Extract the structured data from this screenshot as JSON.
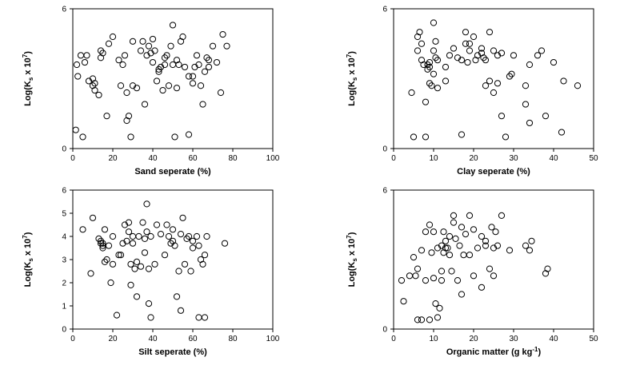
{
  "chart_data": [
    {
      "type": "scatter",
      "xlabel": "Sand seperate (%)",
      "ylabel": "Log(K_s x 10^7)",
      "xlim": [
        0,
        100
      ],
      "ylim": [
        0,
        6
      ],
      "xticks": [
        "0",
        "20",
        "40",
        "60",
        "80",
        "100"
      ],
      "yticks": [
        "0",
        "6"
      ],
      "points": [
        [
          1.5,
          0.8
        ],
        [
          2,
          3.6
        ],
        [
          2.5,
          3.1
        ],
        [
          4,
          4
        ],
        [
          5,
          0.5
        ],
        [
          6,
          3.7
        ],
        [
          7,
          4
        ],
        [
          8,
          2.9
        ],
        [
          10,
          2.7
        ],
        [
          10,
          3
        ],
        [
          11,
          2.8
        ],
        [
          11,
          2.5
        ],
        [
          13,
          2.3
        ],
        [
          14,
          3.9
        ],
        [
          14,
          4.2
        ],
        [
          15,
          4.1
        ],
        [
          17,
          1.4
        ],
        [
          18,
          4.5
        ],
        [
          20,
          4.8
        ],
        [
          23,
          3.8
        ],
        [
          24,
          2.7
        ],
        [
          25,
          3.6
        ],
        [
          26,
          4
        ],
        [
          27,
          2.4
        ],
        [
          27,
          1.2
        ],
        [
          28,
          1.4
        ],
        [
          29,
          0.5
        ],
        [
          30,
          4.6
        ],
        [
          30,
          2.7
        ],
        [
          32,
          2.6
        ],
        [
          34,
          4.2
        ],
        [
          35,
          4.6
        ],
        [
          36,
          1.9
        ],
        [
          37,
          4
        ],
        [
          38,
          4.4
        ],
        [
          39,
          4.1
        ],
        [
          40,
          4.7
        ],
        [
          40,
          3.7
        ],
        [
          41,
          4.2
        ],
        [
          42,
          2.9
        ],
        [
          43,
          3.3
        ],
        [
          43,
          3.4
        ],
        [
          44,
          3.5
        ],
        [
          45,
          2.5
        ],
        [
          46,
          3.9
        ],
        [
          46,
          3.6
        ],
        [
          47,
          4
        ],
        [
          48,
          2.7
        ],
        [
          49,
          4.4
        ],
        [
          50,
          3.6
        ],
        [
          50,
          5.3
        ],
        [
          51,
          0.5
        ],
        [
          52,
          2.6
        ],
        [
          52,
          3.8
        ],
        [
          53,
          3.6
        ],
        [
          54,
          4.6
        ],
        [
          55,
          4.8
        ],
        [
          56,
          3.5
        ],
        [
          58,
          0.6
        ],
        [
          58,
          3.1
        ],
        [
          60,
          3.1
        ],
        [
          60,
          2.8
        ],
        [
          61,
          3.5
        ],
        [
          62,
          4
        ],
        [
          63,
          3.6
        ],
        [
          64,
          2.7
        ],
        [
          65,
          1.9
        ],
        [
          66,
          3.3
        ],
        [
          67,
          3.9
        ],
        [
          68,
          3.5
        ],
        [
          68,
          3.8
        ],
        [
          70,
          4.4
        ],
        [
          72,
          3.7
        ],
        [
          74,
          2.4
        ],
        [
          75,
          4.9
        ],
        [
          77,
          4.4
        ]
      ]
    },
    {
      "type": "scatter",
      "xlabel": "Clay seperate (%)",
      "ylabel": "Log(K_s x 10^7)",
      "xlim": [
        0,
        50
      ],
      "ylim": [
        0,
        6
      ],
      "xticks": [
        "0",
        "10",
        "20",
        "30",
        "40",
        "50"
      ],
      "yticks": [
        "0",
        "6"
      ],
      "points": [
        [
          4.5,
          2.4
        ],
        [
          5,
          0.5
        ],
        [
          6,
          4.2
        ],
        [
          6,
          4.8
        ],
        [
          6.5,
          5
        ],
        [
          7,
          3.8
        ],
        [
          7,
          4.5
        ],
        [
          7.5,
          3.6
        ],
        [
          8,
          2
        ],
        [
          8,
          0.5
        ],
        [
          8.5,
          3.6
        ],
        [
          8.5,
          3.4
        ],
        [
          9,
          3.7
        ],
        [
          9,
          3.5
        ],
        [
          9,
          2.8
        ],
        [
          9.5,
          2.7
        ],
        [
          10,
          3.2
        ],
        [
          10,
          4.2
        ],
        [
          10,
          5.4
        ],
        [
          10.5,
          4.6
        ],
        [
          10.5,
          3.9
        ],
        [
          11,
          3.8
        ],
        [
          11,
          2.6
        ],
        [
          13,
          2.9
        ],
        [
          13,
          3.5
        ],
        [
          14,
          4
        ],
        [
          15,
          4.3
        ],
        [
          16,
          3.9
        ],
        [
          17,
          3.8
        ],
        [
          17,
          0.6
        ],
        [
          18,
          5
        ],
        [
          18,
          4.5
        ],
        [
          18.5,
          3.7
        ],
        [
          19,
          4.5
        ],
        [
          19,
          4.2
        ],
        [
          20,
          4.8
        ],
        [
          20.5,
          3.8
        ],
        [
          21,
          4
        ],
        [
          22,
          4.1
        ],
        [
          22,
          4.3
        ],
        [
          22.5,
          3.9
        ],
        [
          23,
          3.8
        ],
        [
          23,
          2.7
        ],
        [
          24,
          5
        ],
        [
          24,
          2.9
        ],
        [
          25,
          4.2
        ],
        [
          25,
          2.4
        ],
        [
          26,
          4
        ],
        [
          26,
          2.8
        ],
        [
          27,
          1.4
        ],
        [
          27,
          4.1
        ],
        [
          28,
          0.5
        ],
        [
          29,
          3.1
        ],
        [
          29.5,
          3.2
        ],
        [
          30,
          4
        ],
        [
          33,
          2.7
        ],
        [
          33,
          1.9
        ],
        [
          34,
          1.1
        ],
        [
          34,
          3.6
        ],
        [
          36,
          4
        ],
        [
          37,
          4.2
        ],
        [
          38,
          1.4
        ],
        [
          40,
          3.7
        ],
        [
          42,
          0.7
        ],
        [
          42.5,
          2.9
        ],
        [
          46,
          2.7
        ]
      ]
    },
    {
      "type": "scatter",
      "xlabel": "Silt seperate (%)",
      "ylabel": "Log(K_s x 10^7)",
      "xlim": [
        0,
        100
      ],
      "ylim": [
        0,
        6
      ],
      "xticks": [
        "0",
        "20",
        "40",
        "60",
        "80",
        "100"
      ],
      "yticks": [
        "0",
        "1",
        "2",
        "3",
        "4",
        "5",
        "6"
      ],
      "points": [
        [
          5,
          4.3
        ],
        [
          9,
          2.4
        ],
        [
          10,
          4.8
        ],
        [
          13,
          3.9
        ],
        [
          14,
          3.7
        ],
        [
          14,
          3.8
        ],
        [
          15,
          3.5
        ],
        [
          15,
          3.6
        ],
        [
          15,
          3.7
        ],
        [
          16,
          2.9
        ],
        [
          16,
          4.3
        ],
        [
          17,
          3
        ],
        [
          18,
          3.6
        ],
        [
          19,
          2
        ],
        [
          20,
          2.8
        ],
        [
          20,
          4
        ],
        [
          22,
          0.6
        ],
        [
          23,
          3.2
        ],
        [
          24,
          3.2
        ],
        [
          25,
          3.7
        ],
        [
          26,
          4.5
        ],
        [
          27,
          3.8
        ],
        [
          28,
          4.6
        ],
        [
          28,
          4.2
        ],
        [
          29,
          2.8
        ],
        [
          29,
          1.9
        ],
        [
          30,
          3.7
        ],
        [
          30,
          4
        ],
        [
          31,
          2.6
        ],
        [
          32,
          2.9
        ],
        [
          32,
          1.4
        ],
        [
          33,
          4
        ],
        [
          34,
          2.7
        ],
        [
          35,
          4.6
        ],
        [
          36,
          3.9
        ],
        [
          36,
          3.3
        ],
        [
          37,
          5.4
        ],
        [
          37,
          4.2
        ],
        [
          38,
          2.6
        ],
        [
          38,
          1.1
        ],
        [
          39,
          4
        ],
        [
          39,
          0.5
        ],
        [
          41,
          2.8
        ],
        [
          42,
          4.5
        ],
        [
          44,
          4.1
        ],
        [
          46,
          3.2
        ],
        [
          47,
          4.5
        ],
        [
          48,
          4
        ],
        [
          49,
          3.7
        ],
        [
          50,
          4.3
        ],
        [
          50,
          3.8
        ],
        [
          51,
          3.6
        ],
        [
          52,
          1.4
        ],
        [
          53,
          2.5
        ],
        [
          54,
          0.8
        ],
        [
          54,
          4.1
        ],
        [
          55,
          4.8
        ],
        [
          56,
          2.8
        ],
        [
          57,
          3.9
        ],
        [
          58,
          4
        ],
        [
          59,
          2.5
        ],
        [
          60,
          3.8
        ],
        [
          60,
          3.5
        ],
        [
          62,
          4
        ],
        [
          63,
          3.6
        ],
        [
          63,
          0.5
        ],
        [
          64,
          3
        ],
        [
          65,
          2.8
        ],
        [
          66,
          0.5
        ],
        [
          66,
          3.2
        ],
        [
          67,
          4
        ],
        [
          76,
          3.7
        ]
      ]
    },
    {
      "type": "scatter",
      "xlabel": "Organic matter (g kg-1)",
      "ylabel": "Log(K_s x 10^7)",
      "xlim": [
        0,
        50
      ],
      "ylim": [
        0,
        6
      ],
      "xticks": [
        "0",
        "10",
        "20",
        "30",
        "40",
        "50"
      ],
      "yticks": [
        "0",
        "6"
      ],
      "points": [
        [
          2,
          2.1
        ],
        [
          2.5,
          1.2
        ],
        [
          4,
          2.3
        ],
        [
          5,
          3.1
        ],
        [
          5.5,
          2.3
        ],
        [
          6,
          0.4
        ],
        [
          6,
          2.6
        ],
        [
          7,
          0.4
        ],
        [
          7,
          3.4
        ],
        [
          8,
          4.2
        ],
        [
          8,
          2.1
        ],
        [
          9,
          0.4
        ],
        [
          9,
          4.5
        ],
        [
          9.5,
          3.3
        ],
        [
          10,
          2.2
        ],
        [
          10,
          4.2
        ],
        [
          10.5,
          1.1
        ],
        [
          11,
          0.5
        ],
        [
          11,
          3.5
        ],
        [
          11.5,
          0.9
        ],
        [
          12,
          2.5
        ],
        [
          12,
          2.1
        ],
        [
          12,
          3.6
        ],
        [
          12.5,
          3.3
        ],
        [
          12.5,
          4.2
        ],
        [
          13,
          3.5
        ],
        [
          13,
          3.8
        ],
        [
          13.5,
          3.5
        ],
        [
          14,
          3.2
        ],
        [
          14,
          4
        ],
        [
          14.5,
          2.5
        ],
        [
          15,
          4.6
        ],
        [
          15,
          4.9
        ],
        [
          15.5,
          3.9
        ],
        [
          16,
          2.1
        ],
        [
          16.5,
          3.6
        ],
        [
          17,
          4.4
        ],
        [
          17,
          1.5
        ],
        [
          17.5,
          3.2
        ],
        [
          18,
          4.1
        ],
        [
          19,
          4.9
        ],
        [
          19,
          3.2
        ],
        [
          20,
          4.3
        ],
        [
          20,
          2.3
        ],
        [
          21,
          3.5
        ],
        [
          22,
          4
        ],
        [
          22,
          1.8
        ],
        [
          23,
          3.8
        ],
        [
          23,
          3.6
        ],
        [
          24,
          2.6
        ],
        [
          24.5,
          4.4
        ],
        [
          25,
          3.5
        ],
        [
          25,
          2.3
        ],
        [
          25.5,
          4.2
        ],
        [
          26,
          3.6
        ],
        [
          27,
          4.9
        ],
        [
          29,
          3.4
        ],
        [
          33,
          3.6
        ],
        [
          34,
          3.4
        ],
        [
          34.5,
          3.8
        ],
        [
          38,
          2.4
        ],
        [
          38.5,
          2.6
        ]
      ]
    }
  ]
}
